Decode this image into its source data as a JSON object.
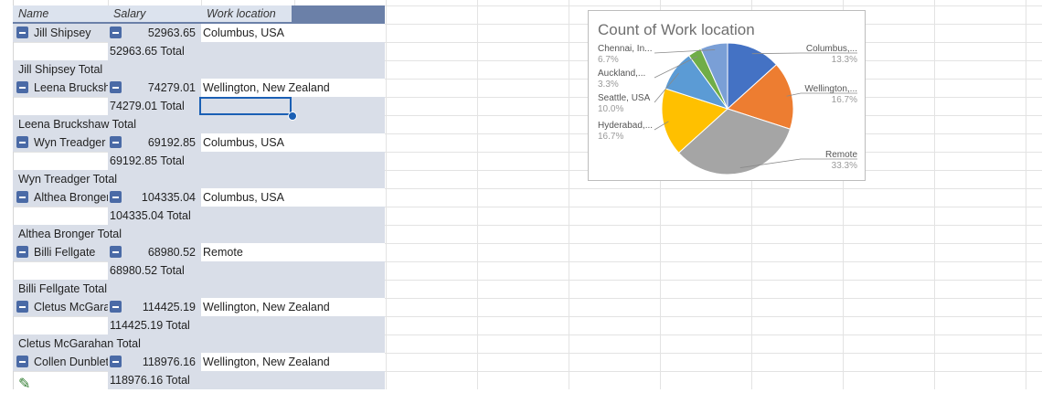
{
  "pivot": {
    "headers": {
      "name": "Name",
      "salary": "Salary",
      "location": "Work location"
    },
    "groups": [
      {
        "name": "Jill Shipsey",
        "salary": "52963.65",
        "location": "Columbus, USA",
        "salary_total": "52963.65 Total",
        "group_total": "Jill Shipsey Total"
      },
      {
        "name": "Leena Bruckshaw",
        "salary": "74279.01",
        "location": "Wellington, New Zealand",
        "salary_total": "74279.01 Total",
        "group_total": "Leena Bruckshaw Total"
      },
      {
        "name": "Wyn Treadger",
        "salary": "69192.85",
        "location": "Columbus, USA",
        "salary_total": "69192.85 Total",
        "group_total": "Wyn Treadger Total"
      },
      {
        "name": "Althea  Bronger",
        "salary": "104335.04",
        "location": "Columbus, USA",
        "salary_total": "104335.04 Total",
        "group_total": "Althea  Bronger Total"
      },
      {
        "name": "Billi Fellgate",
        "salary": "68980.52",
        "location": "Remote",
        "salary_total": "68980.52 Total",
        "group_total": "Billi Fellgate Total"
      },
      {
        "name": "Cletus McGarahan",
        "salary": "114425.19",
        "location": "Wellington, New Zealand",
        "salary_total": "114425.19 Total",
        "group_total": "Cletus McGarahan  Total"
      },
      {
        "name": "Collen Dunbleton",
        "salary": "118976.16",
        "location": "Wellington, New Zealand",
        "salary_total": "118976.16 Total",
        "group_total": ""
      }
    ]
  },
  "chart_data": {
    "type": "pie",
    "title": "Count of Work location",
    "slices": [
      {
        "label": "Columbus,...",
        "pct": "13.3%",
        "value": 13.3,
        "color": "#4472c4"
      },
      {
        "label": "Wellington,...",
        "pct": "16.7%",
        "value": 16.7,
        "color": "#ed7d31"
      },
      {
        "label": "Remote",
        "pct": "33.3%",
        "value": 33.3,
        "color": "#a5a5a5"
      },
      {
        "label": "Hyderabad,...",
        "pct": "16.7%",
        "value": 16.7,
        "color": "#ffc000"
      },
      {
        "label": "Seattle, USA",
        "pct": "10.0%",
        "value": 10.0,
        "color": "#5b9bd5"
      },
      {
        "label": "Auckland,...",
        "pct": "3.3%",
        "value": 3.3,
        "color": "#70ad47"
      },
      {
        "label": "Chennai, In...",
        "pct": "6.7%",
        "value": 6.7,
        "color": "#7a9fd6"
      }
    ]
  }
}
